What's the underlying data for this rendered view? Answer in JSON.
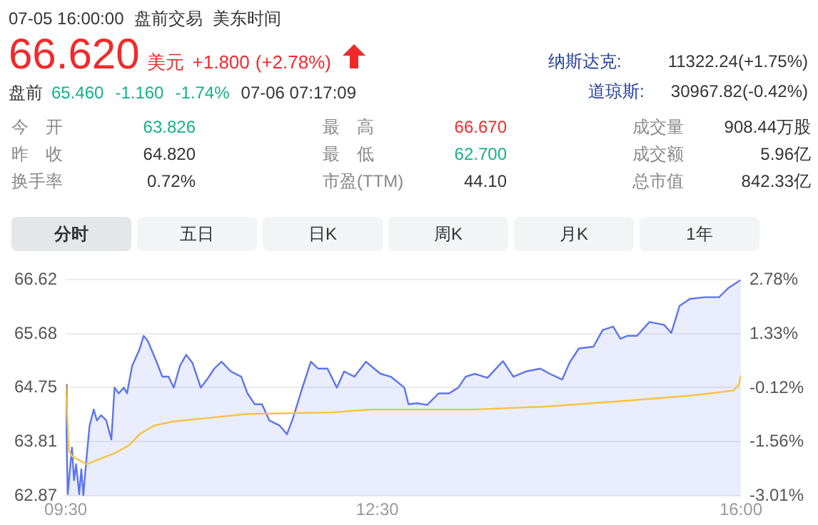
{
  "chart_data": {
    "type": "line",
    "annotations": [
      "07-05 16:00:00",
      "盘前交易",
      "美东时间",
      "66.620",
      "美元",
      "+1.800",
      "(+2.78%)",
      "纳斯达克:",
      "11322.24(+1.75%)",
      "盘前",
      "65.460",
      "-1.160",
      "-1.74%",
      "07-06 07:17:09",
      "道琼斯:",
      "30967.82(-0.42%)",
      "今　开",
      "63.826",
      "最　高",
      "66.670",
      "成交量",
      "908.44万股",
      "昨　收",
      "64.820",
      "最　低",
      "62.700",
      "成交额",
      "5.96亿",
      "换手率",
      "0.72%",
      "市盈(TTM)",
      "44.10",
      "总市值",
      "842.33亿",
      "分时",
      "五日",
      "日K",
      "周K",
      "月K",
      "1年"
    ],
    "series": [
      {
        "type": "area",
        "color": "#5b75f0",
        "x": [
          9.5,
          9.51,
          9.52,
          9.56,
          9.58,
          9.6,
          9.63,
          9.65,
          9.67,
          9.7,
          9.73,
          9.77,
          9.8,
          9.84,
          9.89,
          9.94,
          9.97,
          10.01,
          10.06,
          10.09,
          10.14,
          10.21,
          10.25,
          10.29,
          10.37,
          10.43,
          10.49,
          10.54,
          10.6,
          10.66,
          10.72,
          10.8,
          10.86,
          10.93,
          11.0,
          11.09,
          11.19,
          11.25,
          11.32,
          11.39,
          11.46,
          11.56,
          11.63,
          11.69,
          11.77,
          11.86,
          11.93,
          12.02,
          12.11,
          12.18,
          12.28,
          12.39,
          12.53,
          12.63,
          12.76,
          12.8,
          12.88,
          12.98,
          13.09,
          13.19,
          13.28,
          13.35,
          13.44,
          13.56,
          13.71,
          13.81,
          13.93,
          14.07,
          14.16,
          14.28,
          14.35,
          14.44,
          14.58,
          14.67,
          14.77,
          14.84,
          14.91,
          15.0,
          15.12,
          15.26,
          15.33,
          15.41,
          15.51,
          15.65,
          15.79,
          15.88,
          16.0
        ],
        "values": [
          64.8,
          63.71,
          62.9,
          63.71,
          63.14,
          63.42,
          62.9,
          63.33,
          62.88,
          63.52,
          64.09,
          64.37,
          64.18,
          64.27,
          64.18,
          63.85,
          64.75,
          64.65,
          64.75,
          64.65,
          65.13,
          65.41,
          65.65,
          65.56,
          65.22,
          64.94,
          64.94,
          64.75,
          65.13,
          65.32,
          65.18,
          64.75,
          64.89,
          65.08,
          65.2,
          65.03,
          64.94,
          64.65,
          64.46,
          64.46,
          64.18,
          64.09,
          63.94,
          64.23,
          64.7,
          65.2,
          65.08,
          65.08,
          64.75,
          65.03,
          64.94,
          65.2,
          64.99,
          64.94,
          64.75,
          64.46,
          64.48,
          64.45,
          64.65,
          64.65,
          64.75,
          64.94,
          64.99,
          64.92,
          65.21,
          64.94,
          65.03,
          65.08,
          64.99,
          64.89,
          65.18,
          65.43,
          65.46,
          65.75,
          65.81,
          65.6,
          65.65,
          65.65,
          65.89,
          65.84,
          65.7,
          66.17,
          66.29,
          66.32,
          66.32,
          66.48,
          66.62
        ]
      },
      {
        "type": "line",
        "color": "#f7c33f",
        "x": [
          9.5,
          9.53,
          9.56,
          9.7,
          9.97,
          10.11,
          10.21,
          10.35,
          10.53,
          10.91,
          11.23,
          12.07,
          12.44,
          12.98,
          13.42,
          14.12,
          14.81,
          15.51,
          15.93,
          15.98,
          16.0
        ],
        "values": [
          64.8,
          63.66,
          63.56,
          63.42,
          63.61,
          63.75,
          63.94,
          64.09,
          64.16,
          64.23,
          64.29,
          64.32,
          64.37,
          64.37,
          64.37,
          64.42,
          64.51,
          64.61,
          64.7,
          64.8,
          64.96
        ]
      }
    ],
    "xlim": [
      9.5,
      16
    ],
    "xticks": [
      {
        "value": 9.5,
        "label": "09:30"
      },
      {
        "value": 12.5,
        "label": "12:30"
      },
      {
        "value": 16,
        "label": "16:00"
      }
    ],
    "ylim": [
      62.87,
      66.62
    ],
    "yticks": [
      62.87,
      63.81,
      64.75,
      65.68,
      66.62
    ],
    "y2lim": [
      -3.01,
      2.78
    ],
    "y2ticks": [
      {
        "value": -3.01,
        "label": "-3.01%"
      },
      {
        "value": -1.56,
        "label": "-1.56%"
      },
      {
        "value": -0.12,
        "label": "-0.12%"
      },
      {
        "value": 1.33,
        "label": "1.33%"
      },
      {
        "value": 2.78,
        "label": "2.78%"
      }
    ],
    "grid": "y",
    "legend": false,
    "marker": "none",
    "line_style": "solid"
  }
}
